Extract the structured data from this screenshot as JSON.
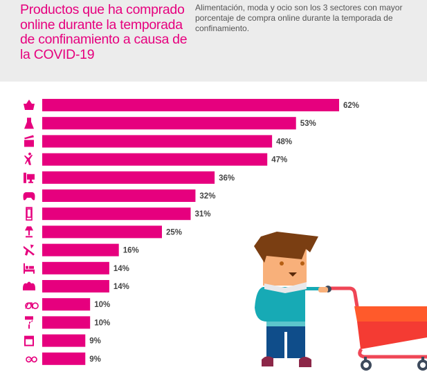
{
  "header": {
    "title": "Productos que ha comprado online durante la temporada de confinamiento a causa de la COVID-19",
    "subtitle": "Alimentación, moda y ocio son los 3 sectores con mayor porcentaje de compra online durante la temporada de confinamiento."
  },
  "chart_data": {
    "type": "bar",
    "orientation": "horizontal",
    "title": "Productos que ha comprado online durante la temporada de confinamiento a causa de la COVID-19",
    "categories": [
      "basket-icon",
      "dress-icon",
      "clapperboard-icon",
      "dancer-icon",
      "computer-icon",
      "gamepad-icon",
      "smartphone-icon",
      "lamp-icon",
      "airplane-icon",
      "bed-icon",
      "sofa-icon",
      "bicycle-icon",
      "paint-roller-icon",
      "oven-icon",
      "glasses-icon"
    ],
    "values": [
      62,
      53,
      48,
      47,
      36,
      32,
      31,
      25,
      16,
      14,
      14,
      10,
      10,
      9,
      9
    ],
    "value_labels": [
      "62%",
      "53%",
      "48%",
      "47%",
      "36%",
      "32%",
      "31%",
      "25%",
      "16%",
      "14%",
      "14%",
      "10%",
      "10%",
      "9%",
      "9%"
    ],
    "xlim": [
      0,
      62
    ],
    "grid": false,
    "bar_color": "#e6007e"
  }
}
